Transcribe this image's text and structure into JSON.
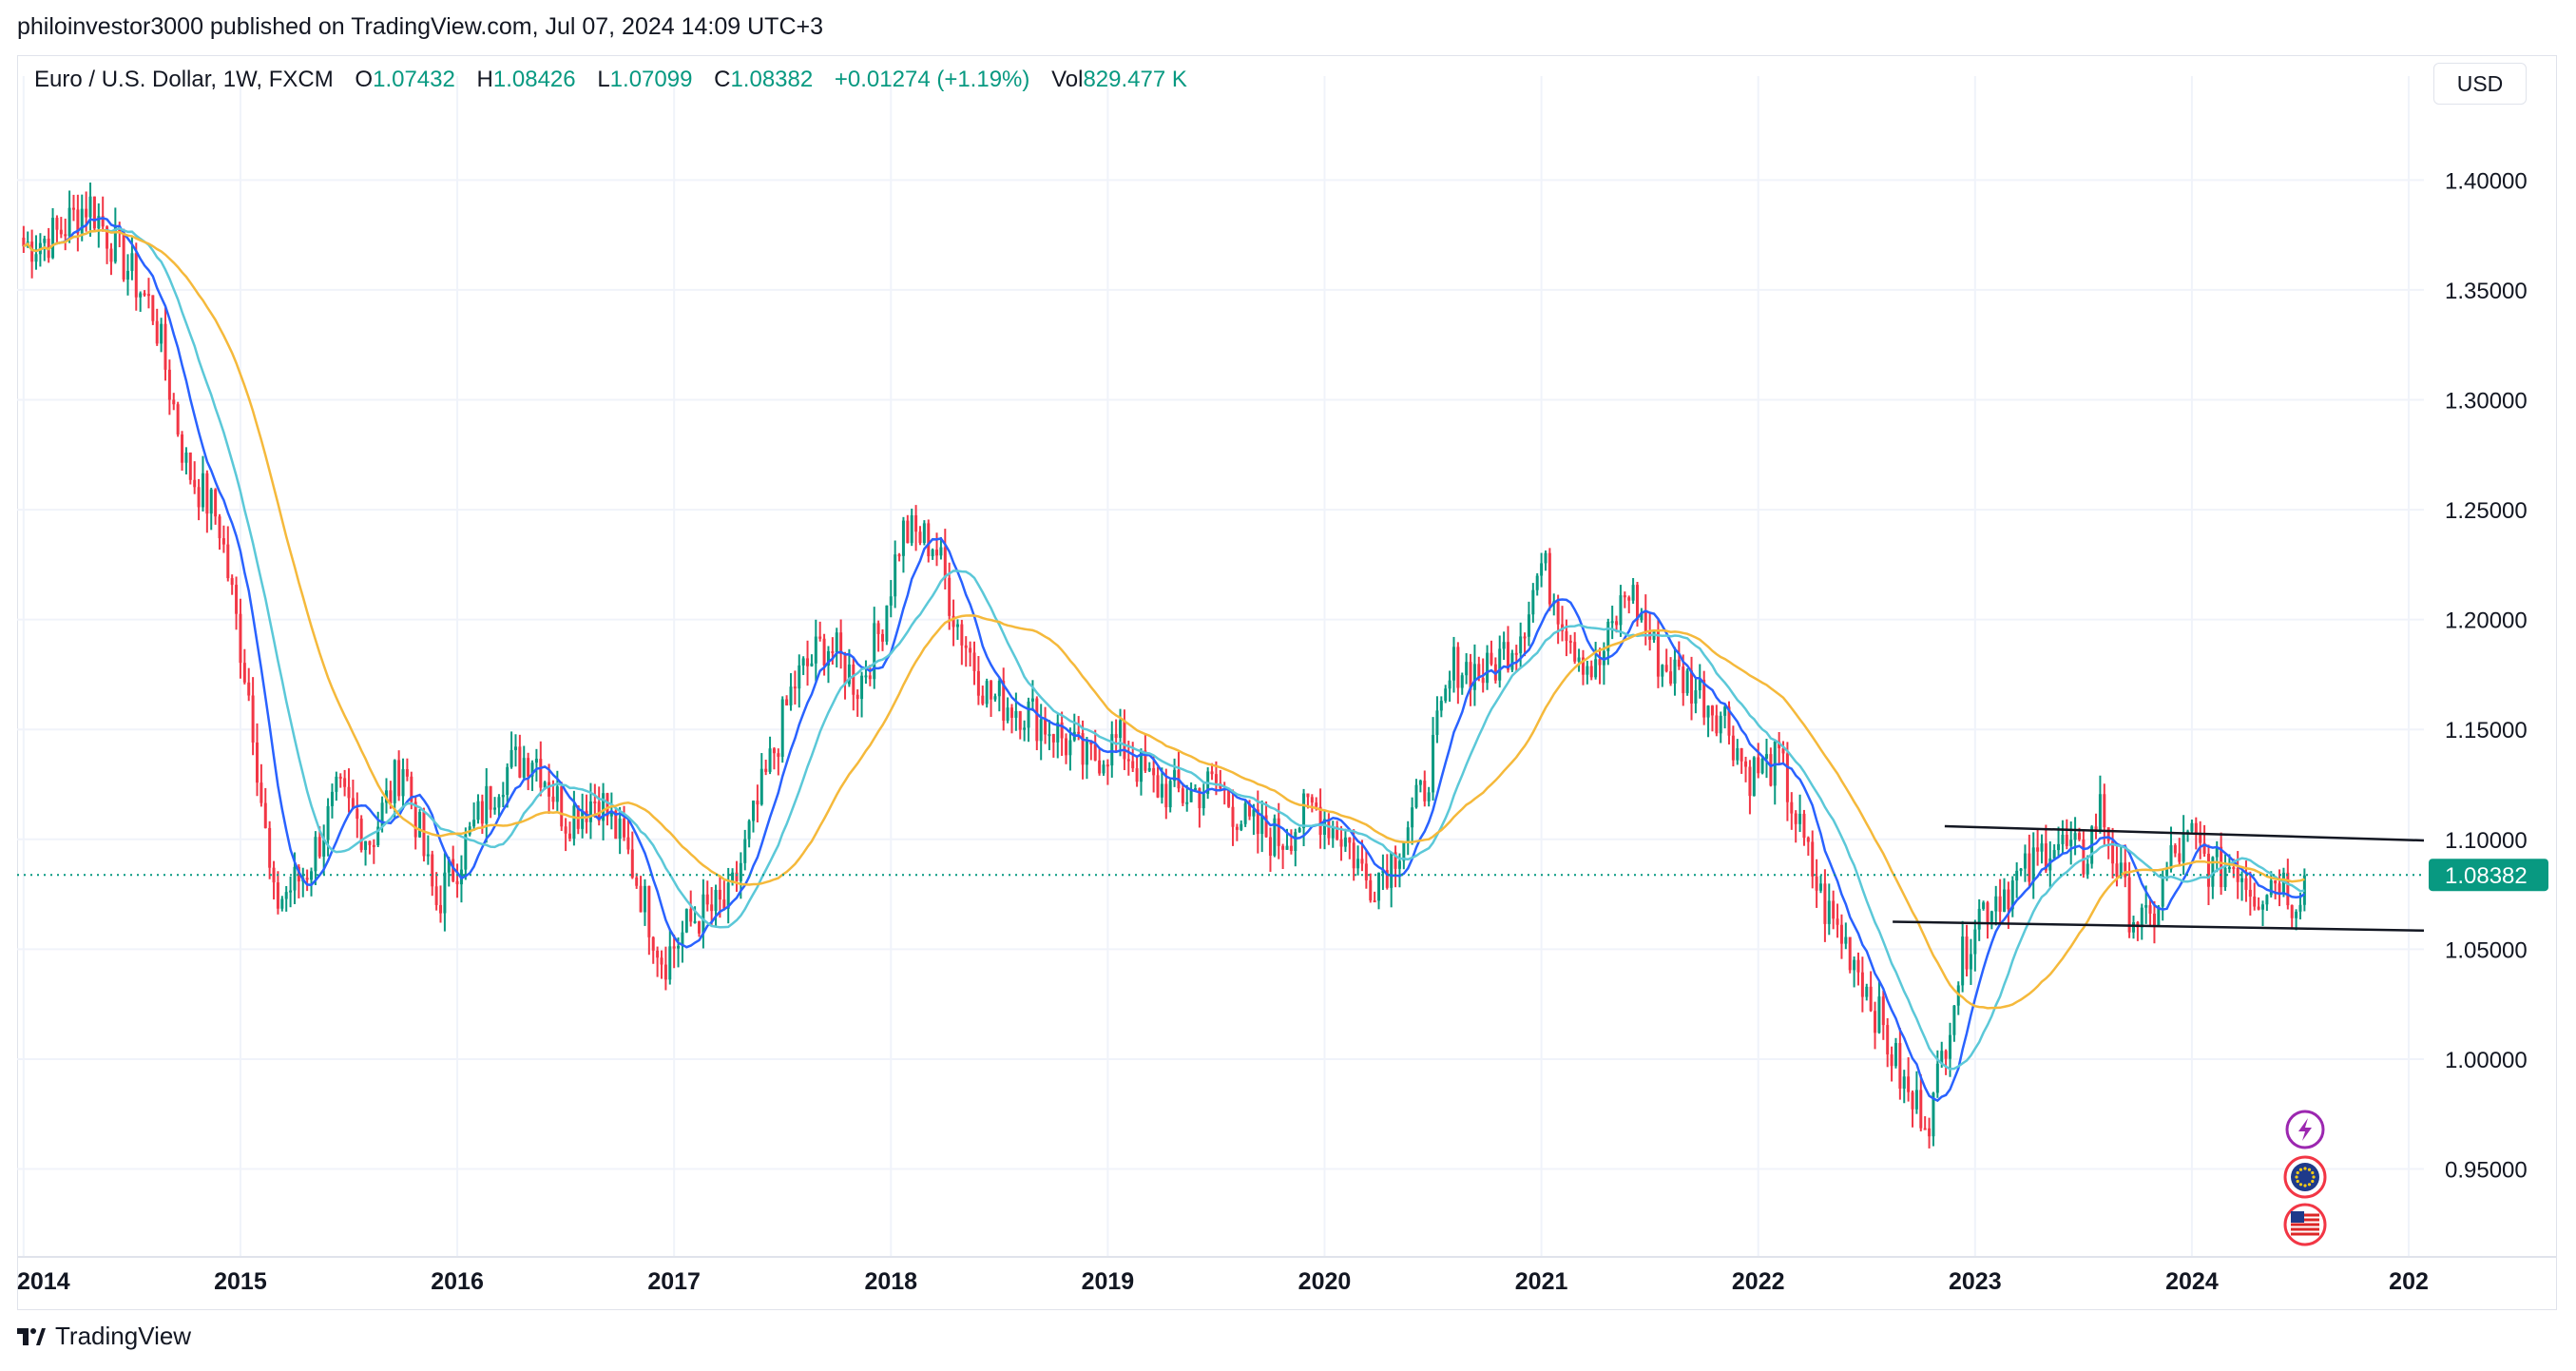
{
  "publish_line": "philoinvestor3000 published on TradingView.com, Jul 07, 2024 14:09 UTC+3",
  "legend": {
    "symbol": "Euro / U.S. Dollar, 1W, FXCM",
    "o_label": "O",
    "o_value": "1.07432",
    "h_label": "H",
    "h_value": "1.08426",
    "l_label": "L",
    "l_value": "1.07099",
    "c_label": "C",
    "c_value": "1.08382",
    "change": "+0.01274 (+1.19%)",
    "vol_label": "Vol",
    "vol_value": "829.477 K"
  },
  "currency_button": "USD",
  "footer_brand": "TradingView",
  "colors": {
    "up": "#089981",
    "down": "#f23645",
    "ma_fast": "#2962ff",
    "ma_mid": "#5bc8d8",
    "ma_slow": "#f5b93b",
    "grid": "#f0f3fa",
    "last_price": "#089981"
  },
  "chart_data": {
    "type": "candlestick",
    "title": "Euro / U.S. Dollar, 1W, FXCM",
    "y_axis_ticks": [
      "0.95000",
      "1.00000",
      "1.05000",
      "1.10000",
      "1.15000",
      "1.20000",
      "1.25000",
      "1.30000",
      "1.35000",
      "1.40000"
    ],
    "x_axis_ticks": [
      "2014",
      "2015",
      "2016",
      "2017",
      "2018",
      "2019",
      "2020",
      "2021",
      "2022",
      "2023",
      "2024",
      "202"
    ],
    "ylim": [
      0.91,
      1.43
    ],
    "xlim": [
      2013.97,
      2025.07
    ],
    "last_price": "1.08382",
    "price_path": [
      [
        2014.0,
        1.37
      ],
      [
        2014.15,
        1.375
      ],
      [
        2014.3,
        1.39
      ],
      [
        2014.45,
        1.365
      ],
      [
        2014.6,
        1.34
      ],
      [
        2014.75,
        1.27
      ],
      [
        2014.9,
        1.245
      ],
      [
        2015.05,
        1.16
      ],
      [
        2015.15,
        1.07
      ],
      [
        2015.3,
        1.085
      ],
      [
        2015.45,
        1.12
      ],
      [
        2015.6,
        1.1
      ],
      [
        2015.75,
        1.135
      ],
      [
        2015.9,
        1.07
      ],
      [
        2016.0,
        1.09
      ],
      [
        2016.2,
        1.13
      ],
      [
        2016.35,
        1.14
      ],
      [
        2016.5,
        1.11
      ],
      [
        2016.65,
        1.12
      ],
      [
        2016.8,
        1.09
      ],
      [
        2016.95,
        1.045
      ],
      [
        2017.1,
        1.065
      ],
      [
        2017.25,
        1.07
      ],
      [
        2017.4,
        1.12
      ],
      [
        2017.55,
        1.17
      ],
      [
        2017.7,
        1.19
      ],
      [
        2017.85,
        1.17
      ],
      [
        2017.95,
        1.195
      ],
      [
        2018.05,
        1.24
      ],
      [
        2018.2,
        1.235
      ],
      [
        2018.3,
        1.2
      ],
      [
        2018.45,
        1.165
      ],
      [
        2018.6,
        1.16
      ],
      [
        2018.75,
        1.15
      ],
      [
        2018.9,
        1.135
      ],
      [
        2019.05,
        1.145
      ],
      [
        2019.2,
        1.125
      ],
      [
        2019.35,
        1.12
      ],
      [
        2019.5,
        1.125
      ],
      [
        2019.65,
        1.105
      ],
      [
        2019.8,
        1.1
      ],
      [
        2019.95,
        1.115
      ],
      [
        2020.1,
        1.1
      ],
      [
        2020.2,
        1.08
      ],
      [
        2020.3,
        1.09
      ],
      [
        2020.45,
        1.12
      ],
      [
        2020.6,
        1.18
      ],
      [
        2020.75,
        1.175
      ],
      [
        2020.9,
        1.195
      ],
      [
        2021.0,
        1.225
      ],
      [
        2021.15,
        1.19
      ],
      [
        2021.25,
        1.175
      ],
      [
        2021.4,
        1.215
      ],
      [
        2021.55,
        1.18
      ],
      [
        2021.7,
        1.17
      ],
      [
        2021.85,
        1.155
      ],
      [
        2021.95,
        1.13
      ],
      [
        2022.1,
        1.135
      ],
      [
        2022.2,
        1.1
      ],
      [
        2022.3,
        1.07
      ],
      [
        2022.45,
        1.045
      ],
      [
        2022.55,
        1.02
      ],
      [
        2022.7,
        0.98
      ],
      [
        2022.8,
        0.975
      ],
      [
        2022.9,
        1.03
      ],
      [
        2023.0,
        1.065
      ],
      [
        2023.1,
        1.075
      ],
      [
        2023.25,
        1.085
      ],
      [
        2023.35,
        1.1
      ],
      [
        2023.5,
        1.09
      ],
      [
        2023.58,
        1.115
      ],
      [
        2023.7,
        1.07
      ],
      [
        2023.8,
        1.058
      ],
      [
        2023.9,
        1.09
      ],
      [
        2024.0,
        1.1
      ],
      [
        2024.1,
        1.085
      ],
      [
        2024.2,
        1.09
      ],
      [
        2024.3,
        1.075
      ],
      [
        2024.4,
        1.085
      ],
      [
        2024.47,
        1.072
      ],
      [
        2024.52,
        1.0838
      ]
    ],
    "trendlines": [
      {
        "name": "upper-channel-line",
        "x1": 2022.86,
        "y1": 1.106,
        "x2": 2025.07,
        "y2": 1.0995
      },
      {
        "name": "lower-channel-line",
        "x1": 2022.62,
        "y1": 1.0625,
        "x2": 2025.07,
        "y2": 1.0585
      }
    ],
    "moving_averages": [
      {
        "name": "fast-ma",
        "period": 10
      },
      {
        "name": "mid-ma",
        "period": 20
      },
      {
        "name": "slow-ma",
        "period": 40
      }
    ],
    "event_icons": [
      "lightning-icon",
      "eu-flag-icon",
      "us-flag-icon"
    ]
  }
}
